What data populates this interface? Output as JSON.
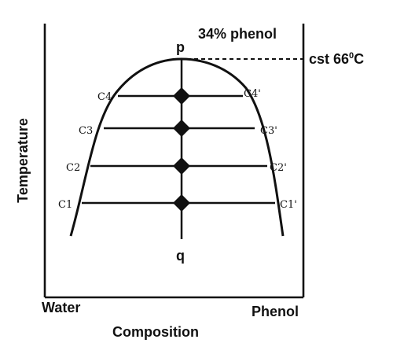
{
  "labels": {
    "composition": "34% phenol",
    "cst": "cst 66",
    "cst_sup": "0",
    "cst_unit": "C",
    "top_point": "p",
    "bottom_point": "q",
    "y_axis": "Temperature",
    "x_axis": "Composition",
    "left_end": "Water",
    "right_end": "Phenol"
  },
  "tie_lines": [
    {
      "left": "C4",
      "right": "C4'"
    },
    {
      "left": "C3",
      "right": "C3'"
    },
    {
      "left": "C2",
      "right": "C2'"
    },
    {
      "left": "C1",
      "right": "C1'"
    }
  ]
}
